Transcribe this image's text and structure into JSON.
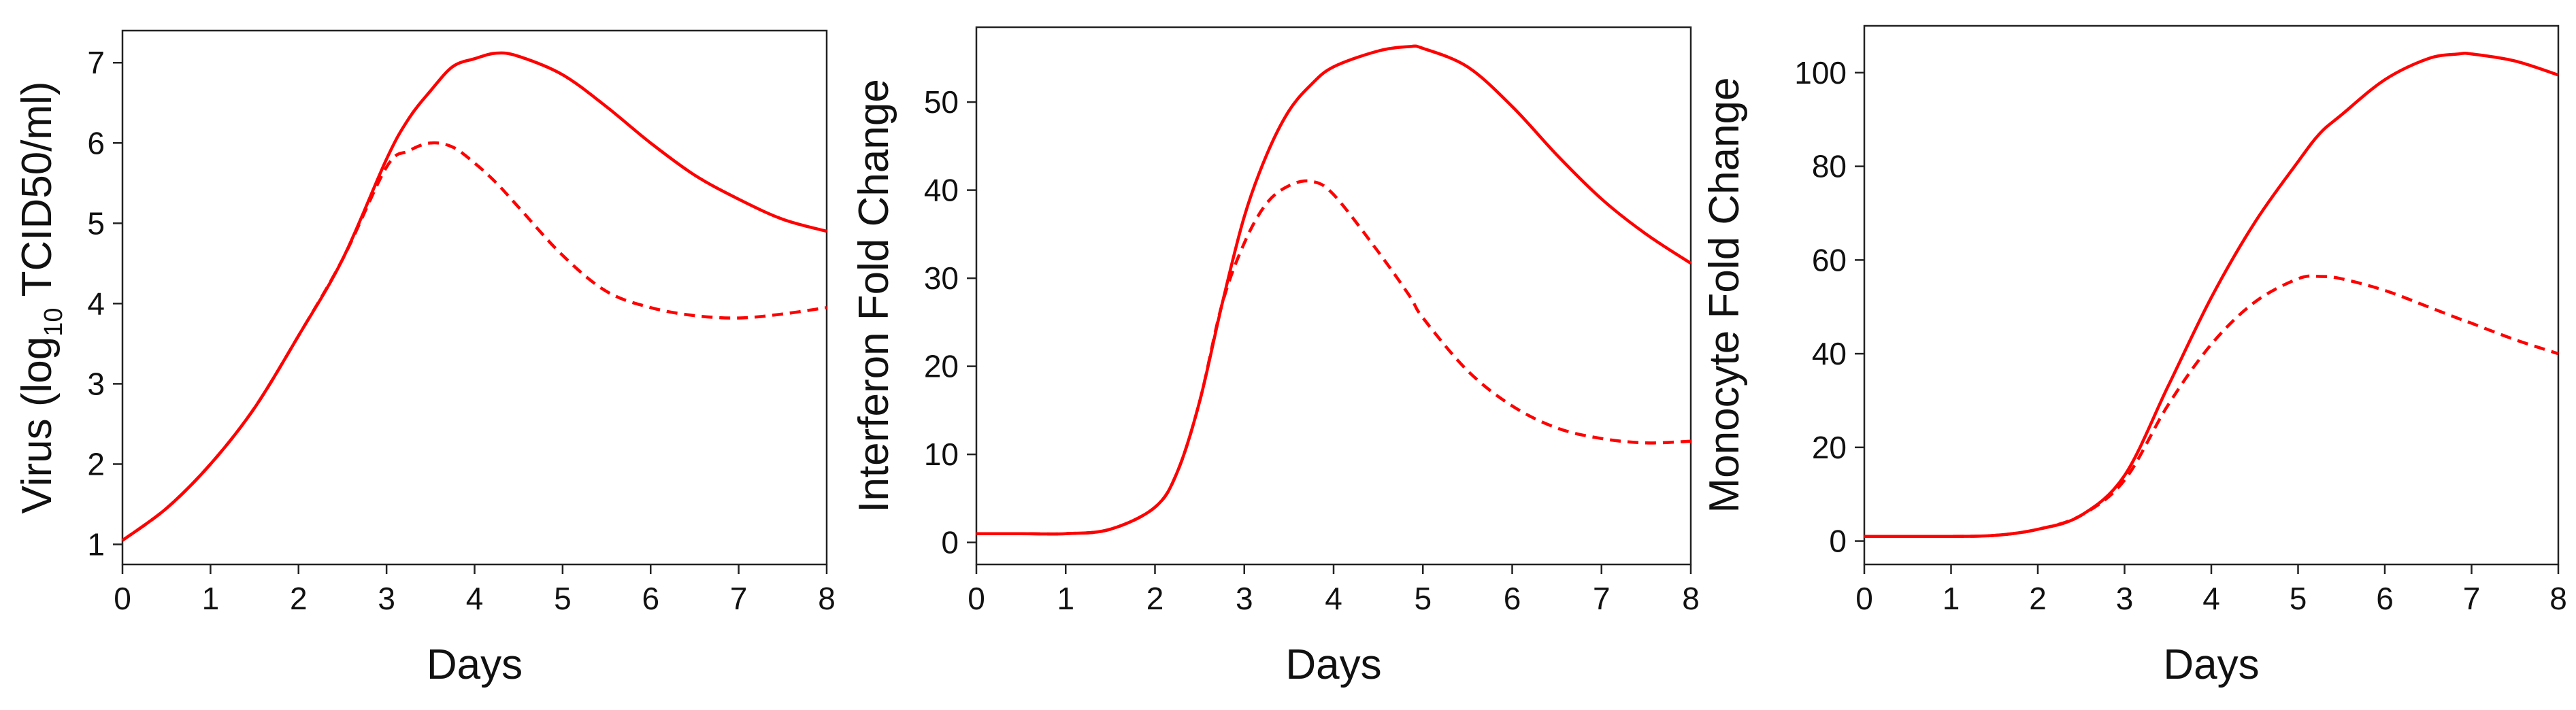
{
  "chart_data": [
    {
      "type": "line",
      "xlabel": "Days",
      "ylabel": "Virus (log10 TCID50/ml)",
      "ylabel_parts": {
        "pre": "Virus (log",
        "sub": "10",
        "post": " TCID50/ml)"
      },
      "xlim": [
        0,
        8
      ],
      "ylim": [
        0.75,
        7.4
      ],
      "xticks": [
        0,
        1,
        2,
        3,
        4,
        5,
        6,
        7,
        8
      ],
      "yticks": [
        1,
        2,
        3,
        4,
        5,
        6,
        7
      ],
      "grid": false,
      "color": "#ff0000",
      "x": [
        0,
        0.5,
        1,
        1.5,
        2,
        2.5,
        3,
        3.25,
        3.5,
        3.75,
        4,
        4.25,
        4.5,
        5,
        5.5,
        6,
        6.5,
        7,
        7.5,
        8
      ],
      "series": [
        {
          "style": "solid",
          "values": [
            1.05,
            1.45,
            2.0,
            2.7,
            3.6,
            4.55,
            5.8,
            6.3,
            6.65,
            6.95,
            7.05,
            7.12,
            7.08,
            6.85,
            6.45,
            6.0,
            5.6,
            5.3,
            5.05,
            4.9
          ]
        },
        {
          "style": "dashed",
          "values": [
            1.05,
            1.45,
            2.0,
            2.7,
            3.6,
            4.55,
            5.7,
            5.9,
            6.0,
            5.95,
            5.75,
            5.5,
            5.2,
            4.6,
            4.15,
            3.95,
            3.85,
            3.82,
            3.87,
            3.95
          ]
        }
      ]
    },
    {
      "type": "line",
      "xlabel": "Days",
      "ylabel": "Interferon Fold Change",
      "xlim": [
        0,
        8
      ],
      "ylim": [
        -2.5,
        58.5
      ],
      "xticks": [
        0,
        1,
        2,
        3,
        4,
        5,
        6,
        7,
        8
      ],
      "yticks": [
        0,
        10,
        20,
        30,
        40,
        50
      ],
      "grid": false,
      "color": "#ff0000",
      "x": [
        0,
        0.5,
        1,
        1.5,
        2,
        2.25,
        2.5,
        2.75,
        3,
        3.25,
        3.5,
        3.75,
        4,
        4.5,
        4.85,
        5,
        5.5,
        6,
        6.5,
        7,
        7.5,
        8
      ],
      "series": [
        {
          "style": "solid",
          "values": [
            1,
            1,
            1,
            1.5,
            4,
            8,
            16,
            27,
            37,
            44,
            49,
            52,
            54,
            55.8,
            56.3,
            56.1,
            54,
            49.5,
            44,
            39,
            35,
            31.7
          ]
        },
        {
          "style": "dashed",
          "values": [
            1,
            1,
            1,
            1.5,
            4,
            8,
            16,
            27,
            34,
            38.5,
            40.5,
            41,
            39.5,
            33,
            28,
            25.5,
            19.5,
            15.5,
            13,
            11.8,
            11.3,
            11.5
          ]
        }
      ]
    },
    {
      "type": "line",
      "xlabel": "Days",
      "ylabel": "Monocyte Fold Change",
      "xlim": [
        0,
        8
      ],
      "ylim": [
        -5,
        110
      ],
      "xticks": [
        0,
        1,
        2,
        3,
        4,
        5,
        6,
        7,
        8
      ],
      "yticks": [
        0,
        20,
        40,
        60,
        80,
        100
      ],
      "grid": false,
      "color": "#ff0000",
      "x": [
        0,
        0.5,
        1,
        1.5,
        2,
        2.5,
        3,
        3.5,
        4,
        4.5,
        5,
        5.25,
        5.5,
        6,
        6.5,
        6.85,
        7,
        7.5,
        8
      ],
      "series": [
        {
          "style": "solid",
          "values": [
            1,
            1,
            1,
            1.2,
            2.5,
            5.5,
            14,
            33,
            52,
            68,
            81,
            87,
            91,
            98.5,
            103,
            104,
            104,
            102.5,
            99.5
          ]
        },
        {
          "style": "dashed",
          "values": [
            1,
            1,
            1,
            1.2,
            2.5,
            5.5,
            13,
            29,
            42,
            51,
            56,
            56.5,
            56,
            53.5,
            50,
            47.5,
            46.5,
            43,
            40
          ]
        }
      ]
    }
  ]
}
